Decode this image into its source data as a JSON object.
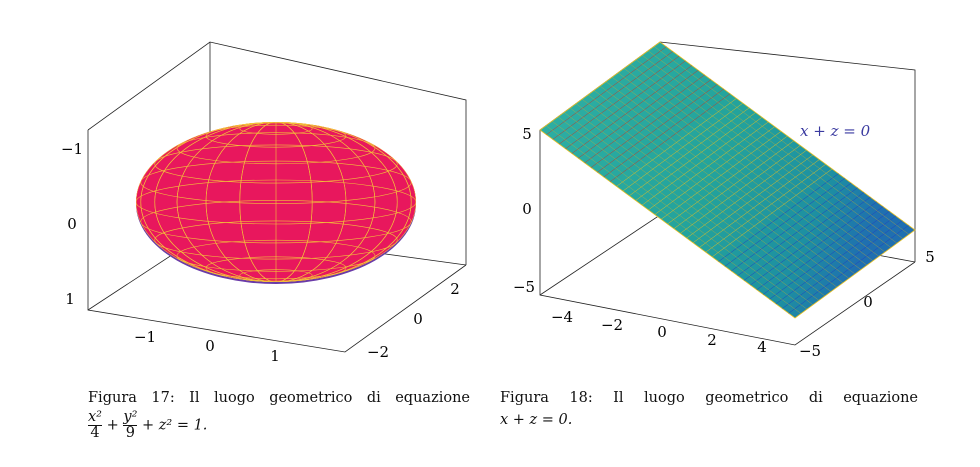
{
  "figures": [
    {
      "axes": {
        "x_ticks": [
          "−1",
          "0",
          "1"
        ],
        "y_ticks": [
          "−2",
          "0",
          "2"
        ],
        "z_ticks": [
          "−1",
          "0",
          "1"
        ]
      },
      "caption": {
        "label": "Figura 17:",
        "text": "Il luogo geometrico di equazione",
        "equation": {
          "num1": "x²",
          "den1": "4",
          "plus1": "+",
          "num2": "y²",
          "den2": "9",
          "rest": "+ z² = 1."
        }
      }
    },
    {
      "axes": {
        "x_ticks": [
          "−4",
          "−2",
          "0",
          "2",
          "4"
        ],
        "y_ticks": [
          "5",
          "0",
          "−5"
        ],
        "z_ticks": [
          "5",
          "0",
          "−5"
        ]
      },
      "annotation": "x + z = 0",
      "caption": {
        "label": "Figura 18:",
        "text": "Il luogo geometrico di equazione",
        "equation": "x + z = 0."
      }
    }
  ]
}
